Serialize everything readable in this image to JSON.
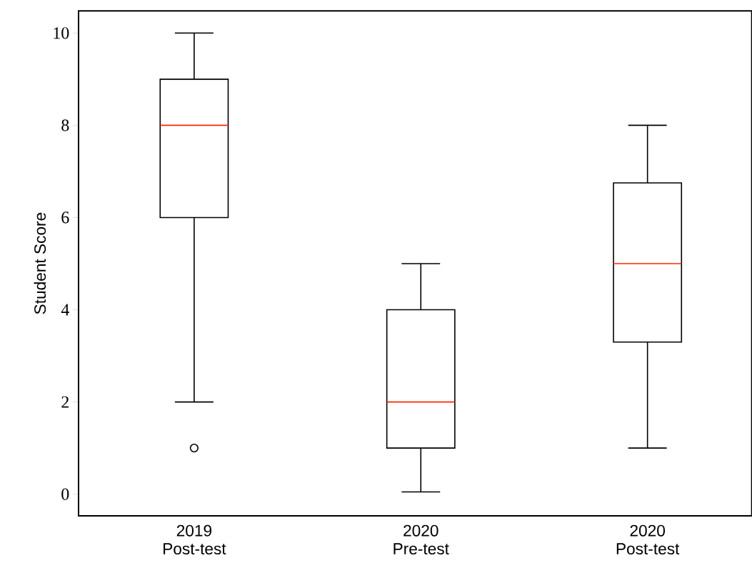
{
  "chart_data": {
    "type": "box",
    "ylabel": "Student Score",
    "categories": [
      "2019 Post-test",
      "2020 Pre-test",
      "2020 Post-test"
    ],
    "boxes": [
      {
        "low": 2,
        "q1": 6,
        "median": 8,
        "q3": 9,
        "high": 10,
        "outliers": [
          1
        ]
      },
      {
        "low": 0.05,
        "q1": 1,
        "median": 2,
        "q3": 4,
        "high": 5
      },
      {
        "low": 1,
        "q1": 3.3,
        "median": 5,
        "q3": 6.75,
        "high": 8
      }
    ],
    "ylim": [
      -0.47,
      10.48
    ],
    "yticks": [
      0,
      2,
      4,
      6,
      8,
      10
    ]
  }
}
